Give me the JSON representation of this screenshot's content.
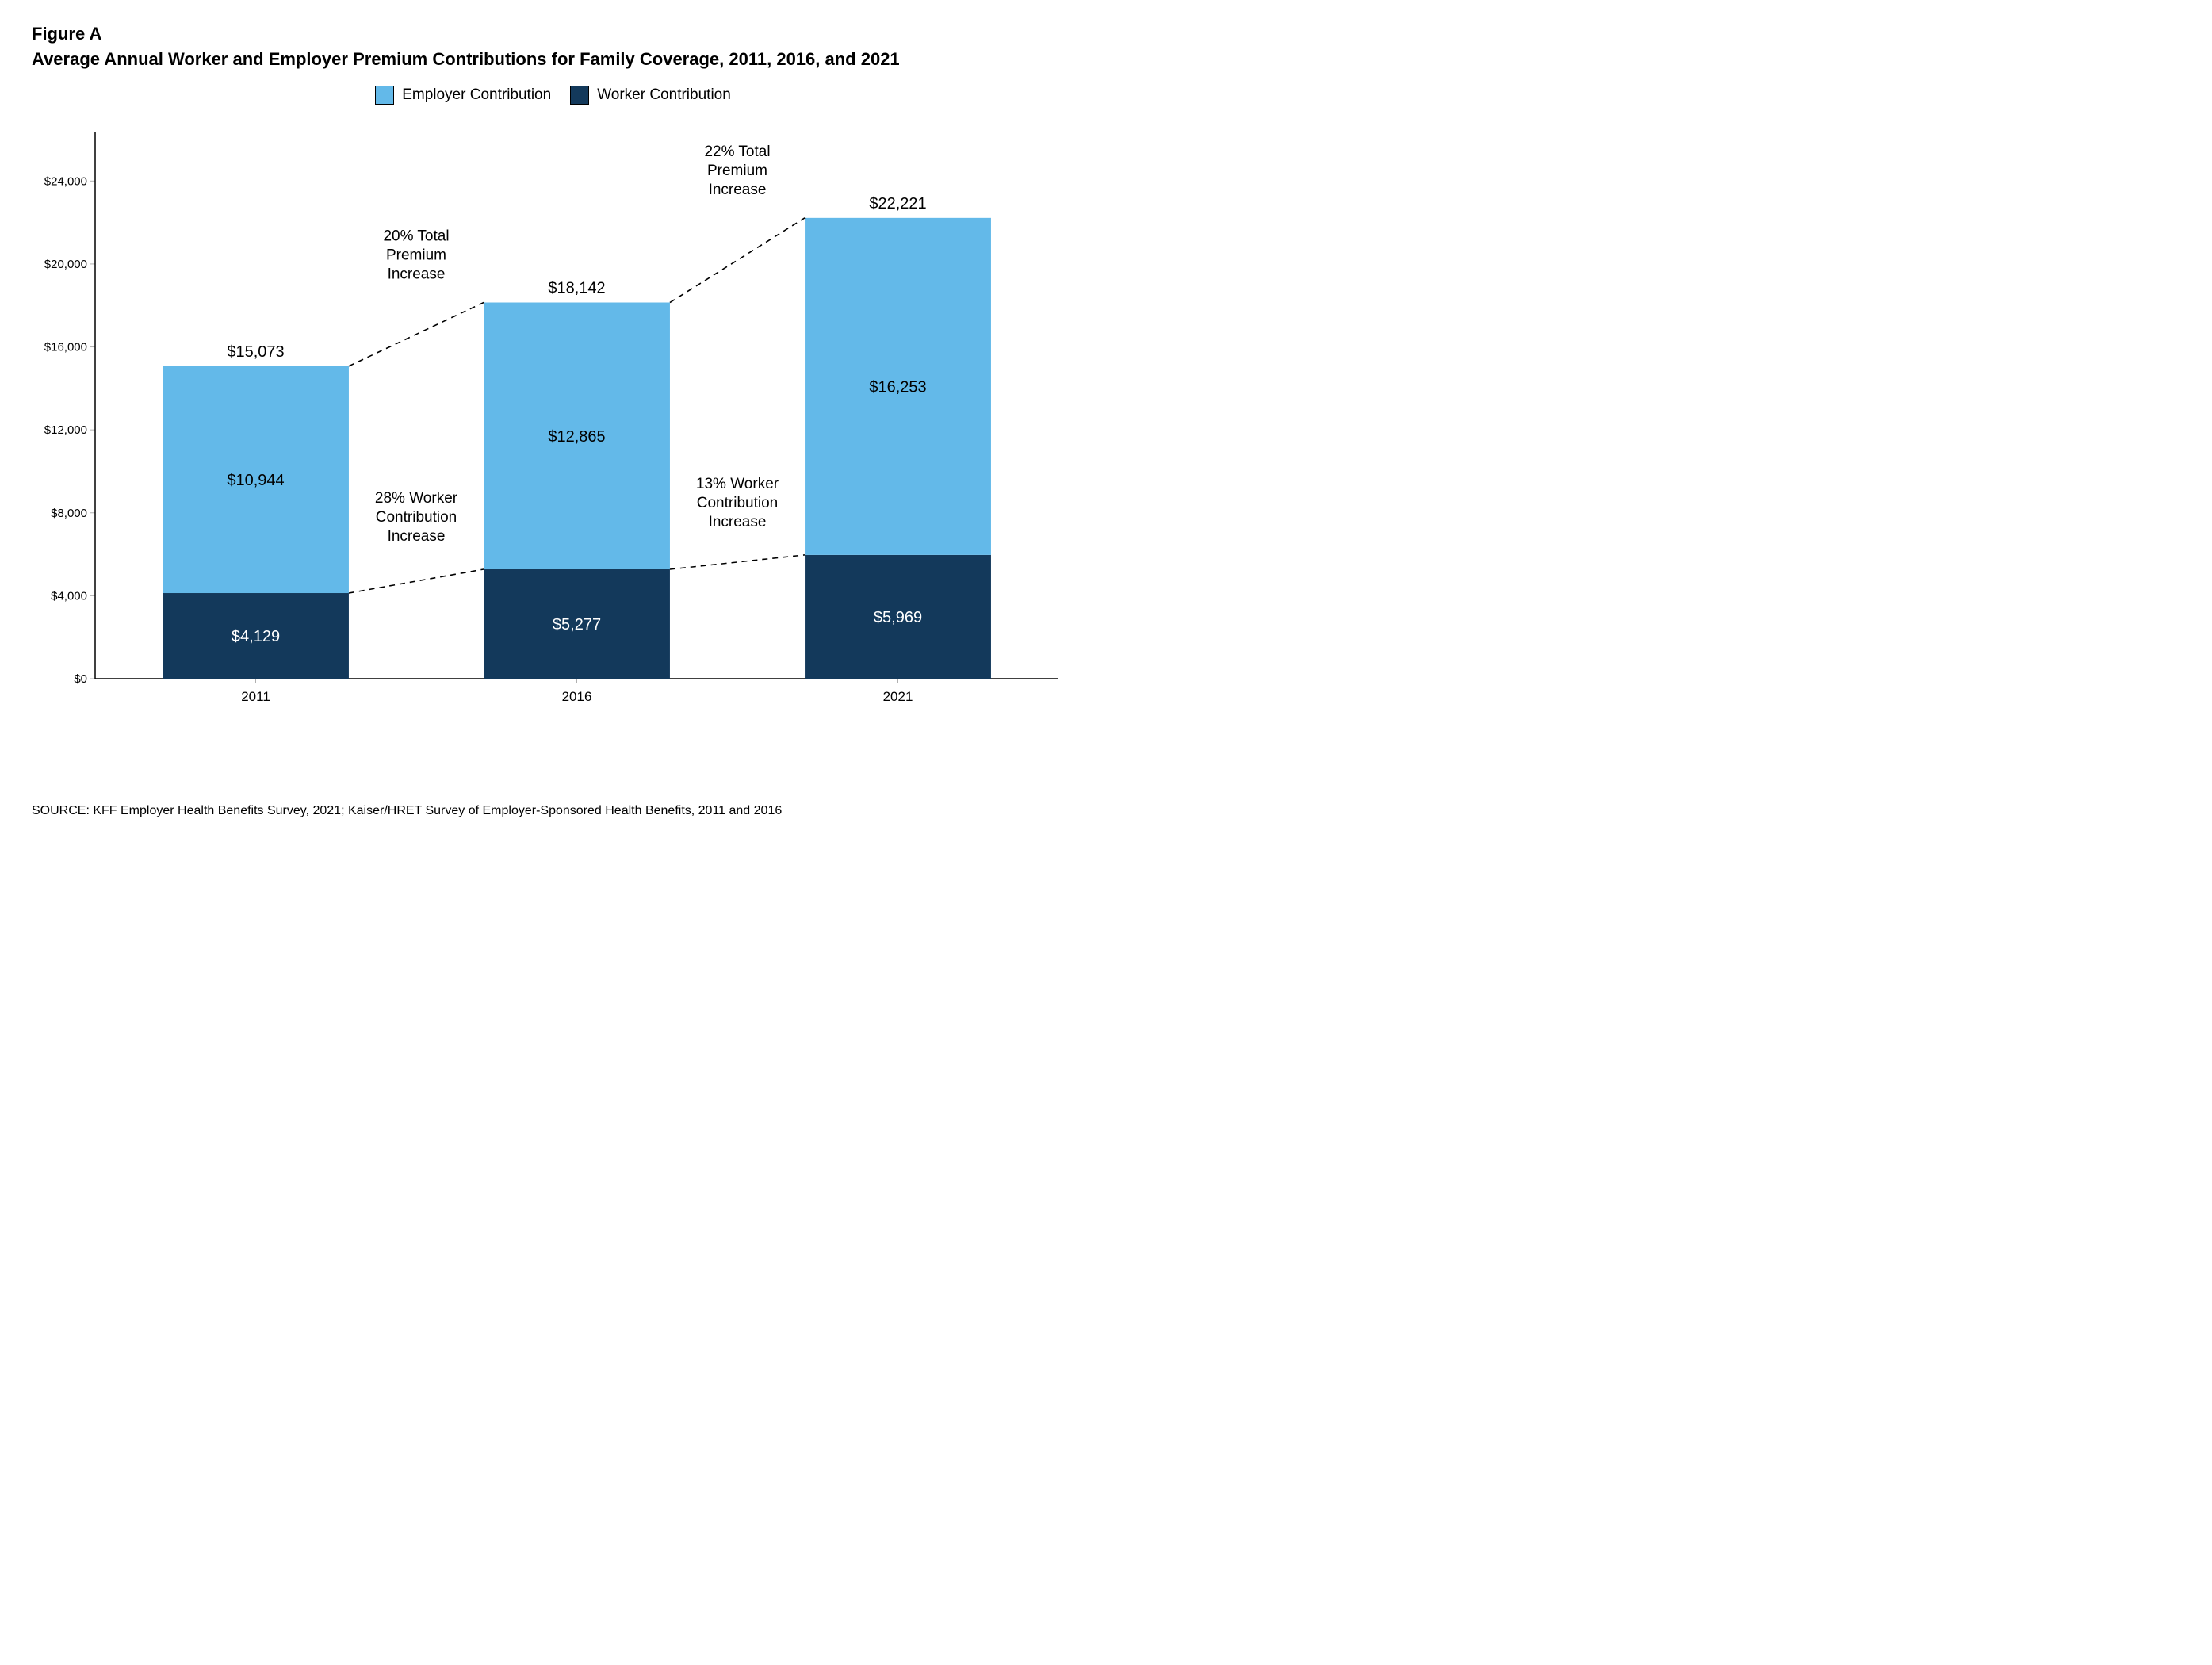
{
  "figure_label": "Figure A",
  "title": "Average Annual Worker and Employer Premium Contributions for Family Coverage, 2011, 2016, and 2021",
  "legend": {
    "employer": {
      "label": "Employer Contribution",
      "color": "#63b9e9"
    },
    "worker": {
      "label": "Worker Contribution",
      "color": "#13395b"
    }
  },
  "chart": {
    "type": "stacked-bar",
    "background_color": "#ffffff",
    "axis_color": "#000000",
    "tick_color": "#b0b0b0",
    "ylim": [
      0,
      26000
    ],
    "yticks": [
      0,
      4000,
      8000,
      12000,
      16000,
      20000,
      24000
    ],
    "ytick_labels": [
      "$0",
      "$4,000",
      "$8,000",
      "$12,000",
      "$16,000",
      "$20,000",
      "$24,000"
    ],
    "bar_width_ratio": 0.58,
    "categories": [
      "2011",
      "2016",
      "2021"
    ],
    "bars": [
      {
        "year": "2011",
        "worker": 4129,
        "worker_label": "$4,129",
        "employer": 10944,
        "employer_label": "$10,944",
        "total": 15073,
        "total_label": "$15,073"
      },
      {
        "year": "2016",
        "worker": 5277,
        "worker_label": "$5,277",
        "employer": 12865,
        "employer_label": "$12,865",
        "total": 18142,
        "total_label": "$18,142"
      },
      {
        "year": "2021",
        "worker": 5969,
        "worker_label": "$5,969",
        "employer": 16253,
        "employer_label": "$16,253",
        "total": 22221,
        "total_label": "$22,221"
      }
    ],
    "annotations": [
      {
        "between": [
          0,
          1
        ],
        "line1": "20% Total",
        "line2": "Premium",
        "line3": "Increase",
        "attach": "total"
      },
      {
        "between": [
          1,
          2
        ],
        "line1": "22% Total",
        "line2": "Premium",
        "line3": "Increase",
        "attach": "total"
      },
      {
        "between": [
          0,
          1
        ],
        "line1": "28% Worker",
        "line2": "Contribution",
        "line3": "Increase",
        "attach": "worker"
      },
      {
        "between": [
          1,
          2
        ],
        "line1": "13% Worker",
        "line2": "Contribution",
        "line3": "Increase",
        "attach": "worker"
      }
    ]
  },
  "source": "SOURCE:  KFF Employer Health Benefits Survey, 2021; Kaiser/HRET Survey of Employer-Sponsored Health Benefits, 2011 and 2016"
}
